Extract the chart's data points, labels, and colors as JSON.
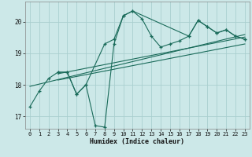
{
  "title": "",
  "xlabel": "Humidex (Indice chaleur)",
  "ylabel": "",
  "background_color": "#cce8e8",
  "grid_color": "#aacfcf",
  "line_color": "#1a6b5a",
  "xlim": [
    -0.5,
    23.5
  ],
  "ylim": [
    16.6,
    20.65
  ],
  "yticks": [
    17,
    18,
    19,
    20
  ],
  "xticks": [
    0,
    1,
    2,
    3,
    4,
    5,
    6,
    7,
    8,
    9,
    10,
    11,
    12,
    13,
    14,
    15,
    16,
    17,
    18,
    19,
    20,
    21,
    22,
    23
  ],
  "series1_x": [
    0,
    1,
    2,
    3,
    4,
    5,
    6,
    7,
    8,
    9,
    10,
    11,
    12,
    13,
    14,
    15,
    16,
    17,
    18,
    19,
    20,
    21,
    22,
    23
  ],
  "series1_y": [
    17.3,
    17.8,
    18.2,
    18.4,
    18.4,
    17.7,
    18.0,
    16.7,
    16.65,
    19.3,
    20.2,
    20.35,
    20.1,
    19.55,
    19.2,
    19.3,
    19.4,
    19.55,
    20.05,
    19.85,
    19.65,
    19.75,
    19.55,
    19.45
  ],
  "series2_x": [
    3,
    4,
    5,
    6,
    8,
    9,
    10,
    11,
    17,
    18,
    19,
    20,
    21,
    22,
    23
  ],
  "series2_y": [
    18.4,
    18.4,
    17.7,
    18.0,
    19.3,
    19.45,
    20.2,
    20.35,
    19.55,
    20.05,
    19.85,
    19.65,
    19.75,
    19.55,
    19.45
  ],
  "trend1_x": [
    0,
    23
  ],
  "trend1_y": [
    17.95,
    19.6
  ],
  "trend2_x": [
    3,
    23
  ],
  "trend2_y": [
    18.35,
    19.52
  ],
  "trend3_x": [
    3,
    23
  ],
  "trend3_y": [
    18.15,
    19.3
  ]
}
